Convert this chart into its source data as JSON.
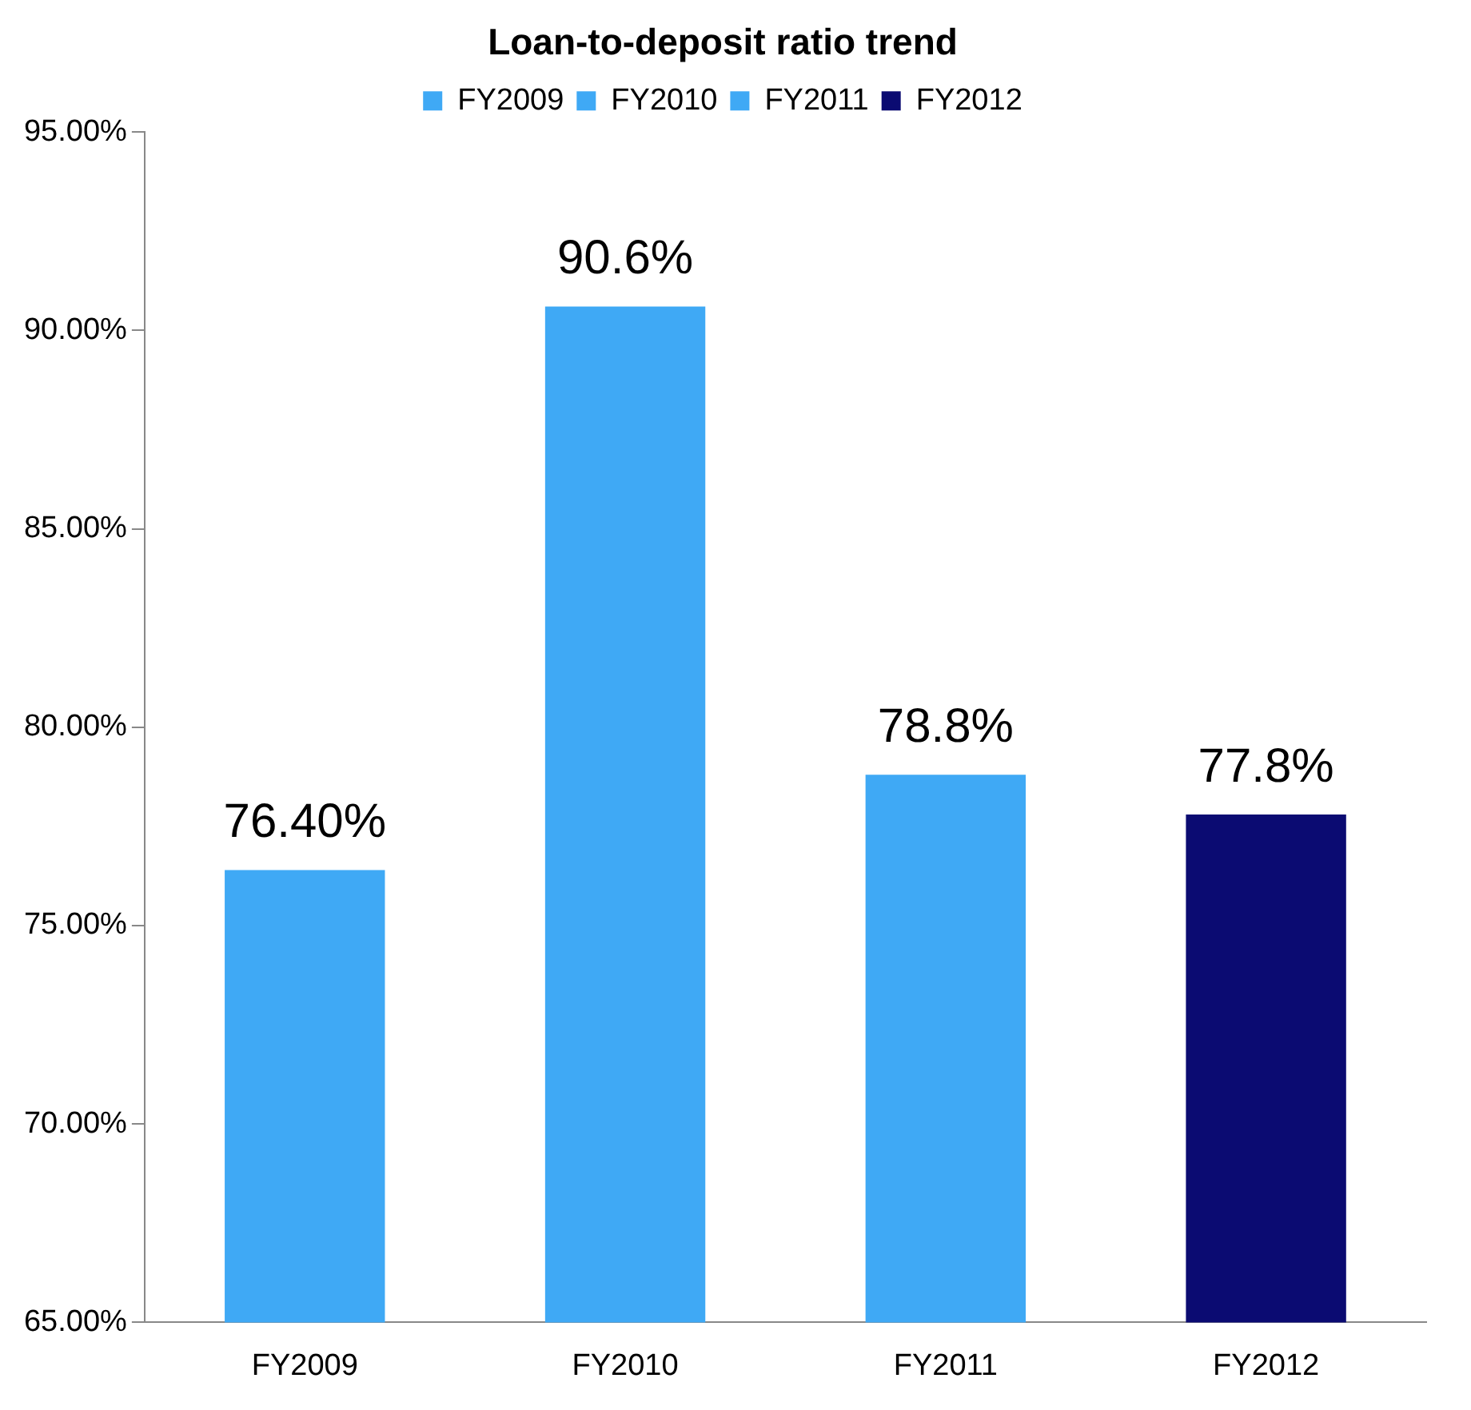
{
  "chart_data": {
    "type": "bar",
    "title": "Loan-to-deposit ratio trend",
    "categories": [
      "FY2009",
      "FY2010",
      "FY2011",
      "FY2012"
    ],
    "series": [
      {
        "name": "FY2009",
        "color": "#3fa9f5",
        "values": [
          76.4,
          null,
          null,
          null
        ],
        "value_labels": [
          "76.40%",
          null,
          null,
          null
        ]
      },
      {
        "name": "FY2010",
        "color": "#3fa9f5",
        "values": [
          null,
          90.6,
          null,
          null
        ],
        "value_labels": [
          null,
          "90.6%",
          null,
          null
        ]
      },
      {
        "name": "FY2011",
        "color": "#3fa9f5",
        "values": [
          null,
          null,
          78.8,
          null
        ],
        "value_labels": [
          null,
          null,
          "78.8%",
          null
        ]
      },
      {
        "name": "FY2012",
        "color": "#0b0b72",
        "values": [
          null,
          null,
          null,
          77.8
        ],
        "value_labels": [
          null,
          null,
          null,
          "77.8%"
        ]
      }
    ],
    "ylim": [
      65,
      95
    ],
    "yticks": [
      {
        "value": 65,
        "label": "65.00%"
      },
      {
        "value": 70,
        "label": "70.00%"
      },
      {
        "value": 75,
        "label": "75.00%"
      },
      {
        "value": 80,
        "label": "80.00%"
      },
      {
        "value": 85,
        "label": "85.00%"
      },
      {
        "value": 90,
        "label": "90.00%"
      },
      {
        "value": 95,
        "label": "95.00%"
      }
    ],
    "grid": false,
    "legend": "top"
  }
}
